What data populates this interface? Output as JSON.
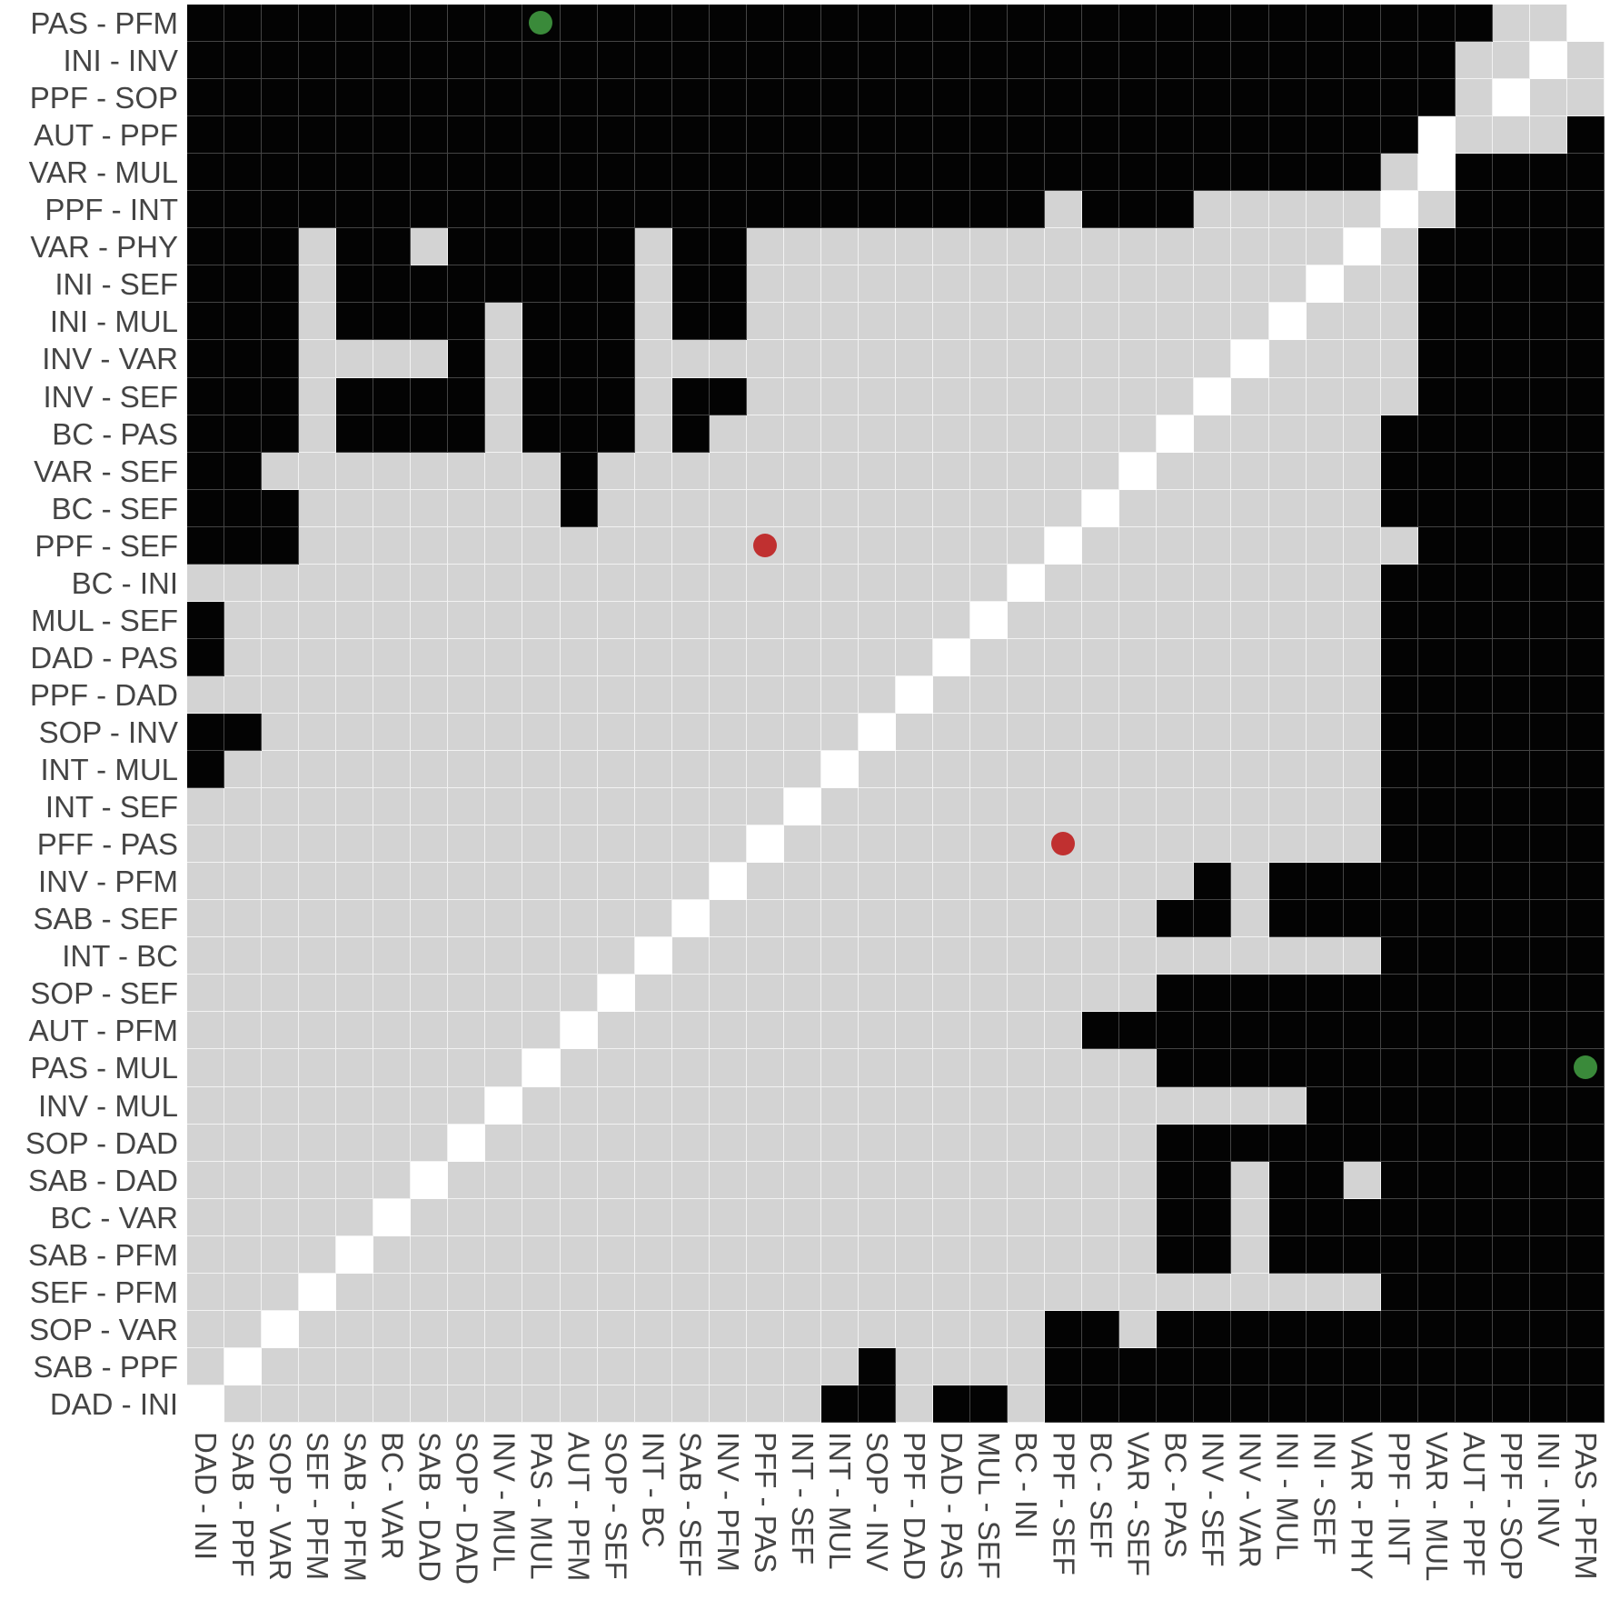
{
  "chart_data": {
    "type": "heatmap",
    "title": "",
    "xlabel": "",
    "ylabel": "",
    "legend": "none",
    "grid": true,
    "value_encoding": {
      "1": "black (significant)",
      "0": "grey (not significant)",
      "-1": "white (diagonal)"
    },
    "colors": {
      "black": "#030303",
      "grey": "#d3d3d3",
      "white": "#ffffff",
      "green_dot": "#3a8a3a",
      "red_dot": "#c03030"
    },
    "row_labels": [
      "PAS - PFM",
      "INI - INV",
      "PPF - SOP",
      "AUT - PPF",
      "VAR - MUL",
      "PPF - INT",
      "VAR - PHY",
      "INI - SEF",
      "INI - MUL",
      "INV - VAR",
      "INV - SEF",
      "BC - PAS",
      "VAR - SEF",
      "BC - SEF",
      "PPF - SEF",
      "BC - INI",
      "MUL - SEF",
      "DAD - PAS",
      "PPF - DAD",
      "SOP - INV",
      "INT - MUL",
      "INT - SEF",
      "PFF - PAS",
      "INV - PFM",
      "SAB - SEF",
      "INT - BC",
      "SOP - SEF",
      "AUT - PFM",
      "PAS - MUL",
      "INV - MUL",
      "SOP - DAD",
      "SAB - DAD",
      "BC - VAR",
      "SAB - PFM",
      "SEF - PFM",
      "SOP - VAR",
      "SAB - PPF",
      "DAD - INI"
    ],
    "col_labels": [
      "DAD - INI",
      "SAB - PPF",
      "SOP - VAR",
      "SEF - PFM",
      "SAB - PFM",
      "BC - VAR",
      "SAB - DAD",
      "SOP - DAD",
      "INV - MUL",
      "PAS - MUL",
      "AUT - PFM",
      "SOP - SEF",
      "INT - BC",
      "SAB - SEF",
      "INV - PFM",
      "PFF - PAS",
      "INT - SEF",
      "INT - MUL",
      "SOP - INV",
      "PPF - DAD",
      "DAD - PAS",
      "MUL - SEF",
      "BC - INI",
      "PPF - SEF",
      "BC - SEF",
      "VAR - SEF",
      "BC - PAS",
      "INV - SEF",
      "INV - VAR",
      "INI - MUL",
      "INI - SEF",
      "VAR - PHY",
      "PPF - INT",
      "VAR - MUL",
      "AUT - PPF",
      "PPF - SOP",
      "INI - INV",
      "PAS - PFM"
    ],
    "rows": [
      "BBBBBBBBBBBBBBBBBBBBBBBBBBBBBBBBBBBGGW",
      "BBBBBBBBBBBBBBBBBBBBBBBBBBBBBBBBBBGGWG",
      "BBBBBBBBBBBBBBBBBBBBBBBBBBBBBBBBBBGWGG",
      "BBBBBBBBBBBBBBBBBBBBBBBBBBBBBBBBBWGGGB",
      "BBBBBBBBBBBBBBBBBBBBBBBBBBBBBBBBGWBBBB",
      "BBBBBBBBBBBBBBBBBBBBBBBGBBBGGGGGWGBBBB",
      "BBBGBBGBBBBBGBBGGGGGGGGGGGGGGGGWGBBBBB",
      "BBBGBBBBBBBBGBBGGGGGGGGGGGGGGGWGGBBBBB",
      "BBBGBBBBGBBBGBBGGGGGGGGGGGGGGWGGGBBBBB",
      "BBBGGGGBGBBBGGGGGGGGGGGGGGGGWGGGGBBBBB",
      "BBBGBBBBGBBBGBBGGGGGGGGGGGGWGGGGGBBBBB",
      "BBBGBBBBGBBBGBGGGGGGGGGGGGWGGGGGBBBBBB",
      "BBGGGGGGGGBGGGGGGGGGGGGGGWGGGGGGBBBBBB",
      "BBBGGGGGGGBGGGGGGGGGGGGGWGGGGGGGBBBBBB",
      "BBBGGGGGGGGGGGGGGGGGGGGWGGGGGGGGGBBBBB",
      "GGGGGGGGGGGGGGGGGGGGGGWGGGGGGGGGBBBBBB",
      "BGGGGGGGGGGGGGGGGGGGGWGGGGGGGGGGBBBBBB",
      "BGGGGGGGGGGGGGGGGGGGWGGGGGGGGGGGBBBBBB",
      "GGGGGGGGGGGGGGGGGGGWGGGGGGGGGGGGBBBBBB",
      "BBGGGGGGGGGGGGGGGGWGGGGGGGGGGGGGBBBBBB",
      "BGGGGGGGGGGGGGGGGWGGGGGGGGGGGGGGBBBBBB",
      "GGGGGGGGGGGGGGGGWGGGGGGGGGGGGGGGBBBBBB",
      "GGGGGGGGGGGGGGGWGGGGGGGGGGGGGGGGBBBBBB",
      "GGGGGGGGGGGGGGWGGGGGGGGGGGGBGBBBBBBBBB",
      "GGGGGGGGGGGGGWGGGGGGGGGGGGBBGBBBBBBBBB",
      "GGGGGGGGGGGGWGGGGGGGGGGGGGGGGGGGBBBBBB",
      "GGGGGGGGGGGWGGGGGGGGGGGGGGBBBBBBBBBBBB",
      "GGGGGGGGGGWGGGGGGGGGGGGGBBBBBBBBBBBBBB",
      "GGGGGGGGGWGGGGGGGGGGGGGGGGBBBBBBBBBBBB",
      "GGGGGGGGWGGGGGGGGGGGGGGGGGGGGGBBBBBBBB",
      "GGGGGGGWGGGGGGGGGGGGGGGGGGBBBBBBBBBBBB",
      "GGGGGGWGGGGGGGGGGGGGGGGGGGBBGBBGBBBBBB",
      "GGGGGWGGGGGGGGGGGGGGGGGGGGBBGBBBBBBBBB",
      "GGGGWGGGGGGGGGGGGGGGGGGGGGBBGBBBBBBBBB",
      "GGGWGGGGGGGGGGGGGGGGGGGGGGGGGGGGBBBBBB",
      "GGWGGGGGGGGGGGGGGGGGGGGBBGBBBBBBBBBBBB",
      "GWGGGGGGGGGGGGGGGGBGGGGBBBBBBBBBBBBBBB",
      "WGGGGGGGGGGGGGGGGBBGBBGBBBBBBBBBBBBBBB"
    ],
    "markers": [
      {
        "row": 0,
        "col": 9,
        "color": "green",
        "row_label": "PAS - PFM",
        "col_label": "PAS - MUL"
      },
      {
        "row": 28,
        "col": 37,
        "color": "green",
        "row_label": "PAS - MUL",
        "col_label": "PAS - PFM"
      },
      {
        "row": 14,
        "col": 15,
        "color": "red",
        "row_label": "PPF - SEF",
        "col_label": "PFF - PAS"
      },
      {
        "row": 22,
        "col": 23,
        "color": "red",
        "row_label": "PFF - PAS",
        "col_label": "PPF - SEF"
      }
    ]
  }
}
